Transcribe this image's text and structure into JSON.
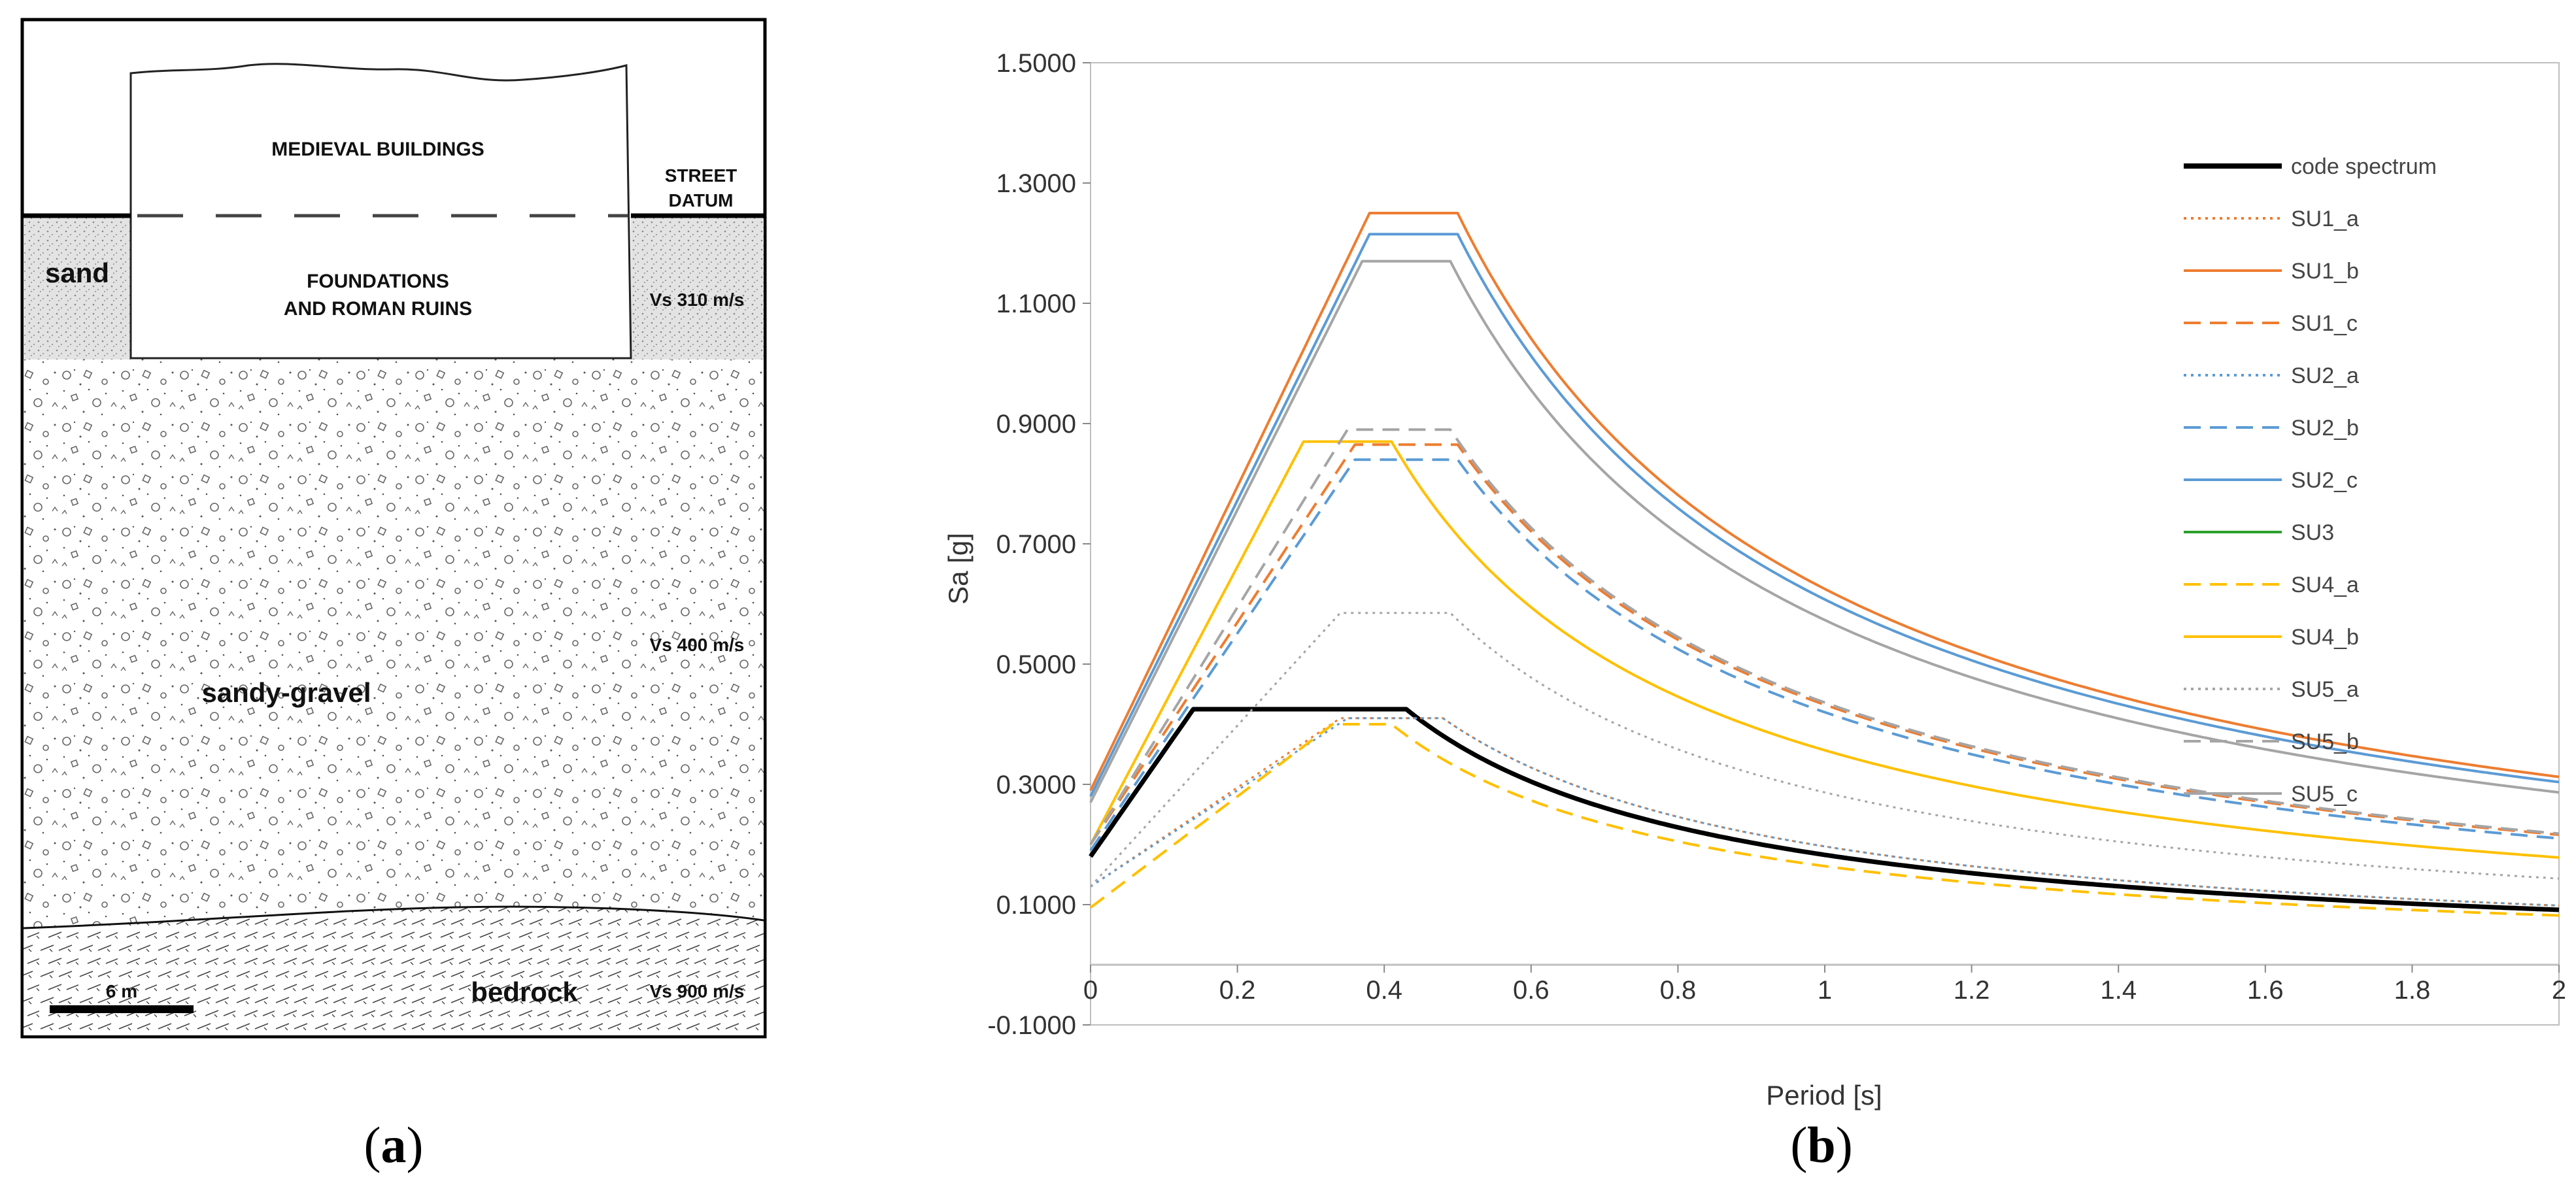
{
  "panel_a": {
    "caption_open": "(",
    "caption_letter": "a",
    "caption_close": ")",
    "buildings_label": "MEDIEVAL BUILDINGS",
    "street_datum_line1": "STREET",
    "street_datum_line2": "DATUM",
    "sand_label": "sand",
    "foundations_line1": "FOUNDATIONS",
    "foundations_line2": "AND ROMAN RUINS",
    "vs_sand": "Vs 310 m/s",
    "vs_gravel": "Vs 400 m/s",
    "gravel_label": "sandy-gravel",
    "bedrock_label": "bedrock",
    "vs_bedrock": "Vs 900 m/s",
    "scale_label": "6 m"
  },
  "panel_b": {
    "caption_open": "(",
    "caption_letter": "b",
    "caption_close": ")"
  },
  "chart_data": {
    "type": "line",
    "title": "",
    "xlabel": "Period [s]",
    "ylabel": "Sa [g]",
    "xlim": [
      0,
      2
    ],
    "ylim": [
      -0.1,
      1.5
    ],
    "xticks": [
      0,
      0.2,
      0.4,
      0.6,
      0.8,
      1,
      1.2,
      1.4,
      1.6,
      1.8,
      2
    ],
    "xtick_labels": [
      "0",
      "0.2",
      "0.4",
      "0.6",
      "0.8",
      "1",
      "1.2",
      "1.4",
      "1.6",
      "1.8",
      "2"
    ],
    "yticks": [
      -0.1,
      0.1,
      0.3,
      0.5,
      0.7,
      0.9,
      1.1,
      1.3,
      1.5
    ],
    "ytick_labels": [
      "-0.1000",
      "0.1000",
      "0.3000",
      "0.5000",
      "0.7000",
      "0.9000",
      "1.1000",
      "1.3000",
      "1.5000"
    ],
    "legend_position": "right",
    "series": [
      {
        "name": "code spectrum",
        "a0": 0.18,
        "pk": 0.425,
        "tb": 0.14,
        "tc": 0.43,
        "color": "#000000",
        "dash": "solid",
        "width": 7
      },
      {
        "name": "SU1_a",
        "a0": 0.13,
        "pk": 0.41,
        "tb": 0.34,
        "tc": 0.48,
        "color": "#ED7D31",
        "dash": "dot",
        "width": 3
      },
      {
        "name": "SU1_b",
        "a0": 0.29,
        "pk": 1.25,
        "tb": 0.38,
        "tc": 0.5,
        "color": "#ED7D31",
        "dash": "solid",
        "width": 4
      },
      {
        "name": "SU1_c",
        "a0": 0.2,
        "pk": 0.865,
        "tb": 0.36,
        "tc": 0.5,
        "color": "#ED7D31",
        "dash": "dash",
        "width": 4
      },
      {
        "name": "SU2_a",
        "a0": 0.13,
        "pk": 0.41,
        "tb": 0.35,
        "tc": 0.48,
        "color": "#5B9BD5",
        "dash": "dot",
        "width": 3
      },
      {
        "name": "SU2_b",
        "a0": 0.19,
        "pk": 0.84,
        "tb": 0.36,
        "tc": 0.5,
        "color": "#5B9BD5",
        "dash": "dash",
        "width": 4
      },
      {
        "name": "SU2_c",
        "a0": 0.28,
        "pk": 1.215,
        "tb": 0.38,
        "tc": 0.5,
        "color": "#5B9BD5",
        "dash": "solid",
        "width": 4
      },
      {
        "name": "SU3",
        "a0": null,
        "pk": null,
        "tb": null,
        "tc": null,
        "color": "#2CA02C",
        "dash": "solid",
        "width": 4
      },
      {
        "name": "SU4_a",
        "a0": 0.095,
        "pk": 0.4,
        "tb": 0.33,
        "tc": 0.41,
        "color": "#FFC000",
        "dash": "dash",
        "width": 4
      },
      {
        "name": "SU4_b",
        "a0": 0.2,
        "pk": 0.87,
        "tb": 0.29,
        "tc": 0.41,
        "color": "#FFC000",
        "dash": "solid",
        "width": 4
      },
      {
        "name": "SU5_a",
        "a0": 0.13,
        "pk": 0.585,
        "tb": 0.34,
        "tc": 0.49,
        "color": "#A5A5A5",
        "dash": "dot",
        "width": 3
      },
      {
        "name": "SU5_b",
        "a0": 0.2,
        "pk": 0.89,
        "tb": 0.35,
        "tc": 0.49,
        "color": "#A5A5A5",
        "dash": "dash",
        "width": 4
      },
      {
        "name": "SU5_c",
        "a0": 0.27,
        "pk": 1.17,
        "tb": 0.37,
        "tc": 0.49,
        "color": "#A5A5A5",
        "dash": "solid",
        "width": 4
      }
    ]
  }
}
